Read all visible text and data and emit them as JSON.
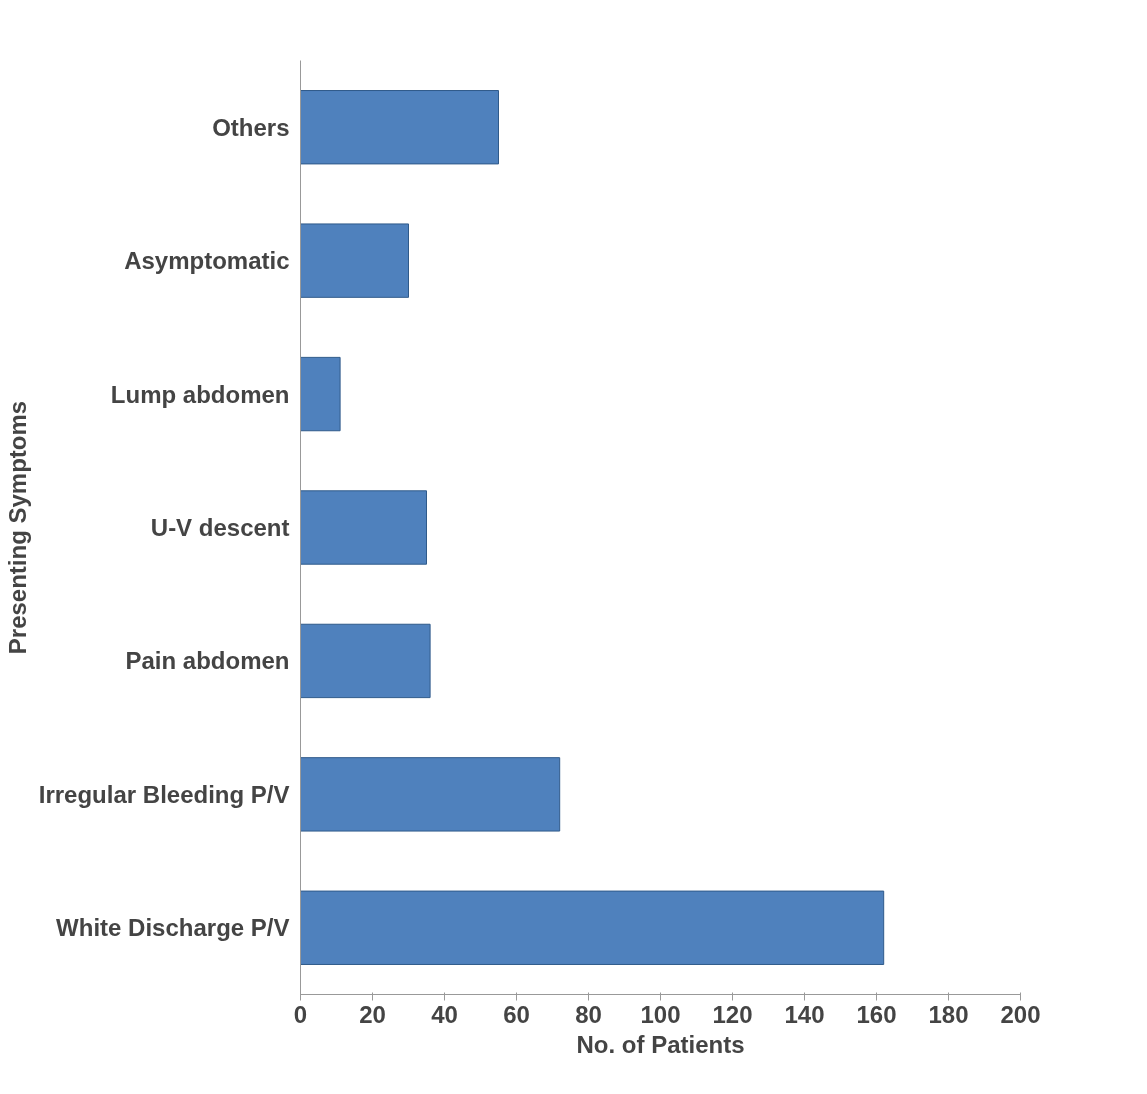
{
  "chart_data": {
    "type": "bar",
    "orientation": "horizontal",
    "xlabel": "No. of Patients",
    "ylabel": "Presenting Symptoms",
    "categories": [
      "Others",
      "Asymptomatic",
      "Lump abdomen",
      "U-V descent",
      "Pain abdomen",
      "Irregular Bleeding P/V",
      "White Discharge P/V"
    ],
    "values": [
      55,
      30,
      11,
      35,
      36,
      72,
      162
    ],
    "color": "#4f81bd",
    "xlim": [
      0,
      200
    ],
    "xticks": [
      0,
      20,
      40,
      60,
      80,
      100,
      120,
      140,
      160,
      180,
      200
    ],
    "grid": false
  }
}
